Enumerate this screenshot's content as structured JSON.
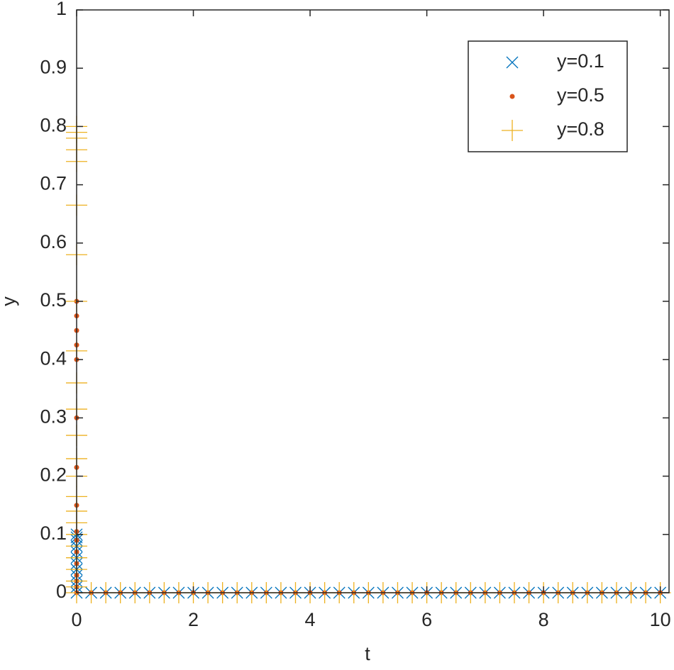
{
  "chart_data": {
    "type": "scatter",
    "x_label": "t",
    "y_label": "y",
    "xlim": [
      0,
      10.15
    ],
    "ylim": [
      0,
      1
    ],
    "xticks": [
      0,
      2,
      4,
      6,
      8,
      10
    ],
    "yticks": [
      0,
      0.1,
      0.2,
      0.3,
      0.4,
      0.5,
      0.6,
      0.7,
      0.8,
      0.9,
      1
    ],
    "legend": "upper right",
    "series": [
      {
        "name": "y=0.1",
        "color": "#0072bd",
        "marker": "x",
        "x": [
          0,
          0,
          0,
          0,
          0,
          0,
          0,
          0,
          0,
          0,
          0,
          0,
          0.25,
          0.5,
          0.75,
          1,
          1.25,
          1.5,
          1.75,
          2,
          2.25,
          2.5,
          2.75,
          3,
          3.25,
          3.5,
          3.75,
          4,
          4.25,
          4.5,
          4.75,
          5,
          5.25,
          5.5,
          5.75,
          6,
          6.25,
          6.5,
          6.75,
          7,
          7.25,
          7.5,
          7.75,
          8,
          8.25,
          8.5,
          8.75,
          9,
          9.25,
          9.5,
          9.75,
          10
        ],
        "values": [
          0.1,
          0.095,
          0.09,
          0.08,
          0.07,
          0.06,
          0.05,
          0.04,
          0.03,
          0.02,
          0.01,
          0,
          0,
          0,
          0,
          0,
          0,
          0,
          0,
          0,
          0,
          0,
          0,
          0,
          0,
          0,
          0,
          0,
          0,
          0,
          0,
          0,
          0,
          0,
          0,
          0,
          0,
          0,
          0,
          0,
          0,
          0,
          0,
          0,
          0,
          0,
          0,
          0,
          0,
          0,
          0,
          0
        ]
      },
      {
        "name": "y=0.5",
        "color": "#d95319",
        "marker": "dot",
        "x": [
          0,
          0,
          0,
          0,
          0,
          0,
          0,
          0,
          0,
          0,
          0,
          0,
          0,
          0,
          0,
          0,
          0.25,
          0.5,
          0.75,
          1,
          1.25,
          1.5,
          1.75,
          2,
          2.25,
          2.5,
          2.75,
          3,
          3.25,
          3.5,
          3.75,
          4,
          4.25,
          4.5,
          4.75,
          5,
          5.25,
          5.5,
          5.75,
          6,
          6.25,
          6.5,
          6.75,
          7,
          7.25,
          7.5,
          7.75,
          8,
          8.25,
          8.5,
          8.75,
          9,
          9.25,
          9.5,
          9.75,
          10
        ],
        "values": [
          0.5,
          0.475,
          0.45,
          0.425,
          0.4,
          0.3,
          0.215,
          0.15,
          0.105,
          0.09,
          0.07,
          0.05,
          0.03,
          0.02,
          0.01,
          0,
          0,
          0,
          0,
          0,
          0,
          0,
          0,
          0,
          0,
          0,
          0,
          0,
          0,
          0,
          0,
          0,
          0,
          0,
          0,
          0,
          0,
          0,
          0,
          0,
          0,
          0,
          0,
          0,
          0,
          0,
          0,
          0,
          0,
          0,
          0,
          0,
          0,
          0,
          0,
          0
        ]
      },
      {
        "name": "y=0.8",
        "color": "#edb120",
        "marker": "plus",
        "x": [
          0,
          0,
          0,
          0,
          0,
          0,
          0,
          0,
          0,
          0,
          0,
          0,
          0,
          0,
          0,
          0,
          0,
          0,
          0,
          0,
          0,
          0,
          0,
          0,
          0.25,
          0.5,
          0.75,
          1,
          1.25,
          1.5,
          1.75,
          2,
          2.25,
          2.5,
          2.75,
          3,
          3.25,
          3.5,
          3.75,
          4,
          4.25,
          4.5,
          4.75,
          5,
          5.25,
          5.5,
          5.75,
          6,
          6.25,
          6.5,
          6.75,
          7,
          7.25,
          7.5,
          7.75,
          8,
          8.25,
          8.5,
          8.75,
          9,
          9.25,
          9.5,
          9.75,
          10
        ],
        "values": [
          0.8,
          0.79,
          0.78,
          0.76,
          0.74,
          0.665,
          0.58,
          0.5,
          0.415,
          0.36,
          0.315,
          0.27,
          0.23,
          0.2,
          0.165,
          0.14,
          0.12,
          0.1,
          0.08,
          0.06,
          0.04,
          0.02,
          0.01,
          0,
          0,
          0,
          0,
          0,
          0,
          0,
          0,
          0,
          0,
          0,
          0,
          0,
          0,
          0,
          0,
          0,
          0,
          0,
          0,
          0,
          0,
          0,
          0,
          0,
          0,
          0,
          0,
          0,
          0,
          0,
          0,
          0,
          0,
          0,
          0,
          0,
          0,
          0,
          0,
          0
        ]
      }
    ]
  }
}
